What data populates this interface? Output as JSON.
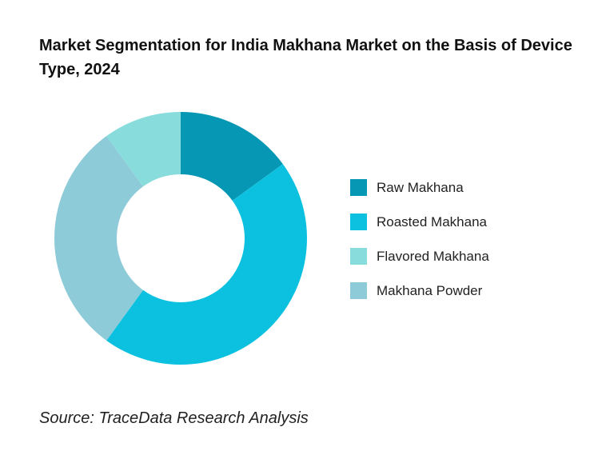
{
  "title": "Market Segmentation for India Makhana Market on the Basis of Device Type, 2024",
  "source": "Source: TraceData Research Analysis",
  "chart_data": {
    "type": "pie",
    "donut": true,
    "legend_position": "right",
    "categories": [
      "Raw Makhana",
      "Roasted Makhana",
      "Flavored Makhana",
      "Makhana Powder"
    ],
    "values": [
      15,
      45,
      10,
      30
    ],
    "colors": [
      "#0597b3",
      "#0cc0e0",
      "#88dcdc",
      "#8ecbd8"
    ],
    "slice_order": [
      0,
      1,
      3,
      2
    ]
  }
}
